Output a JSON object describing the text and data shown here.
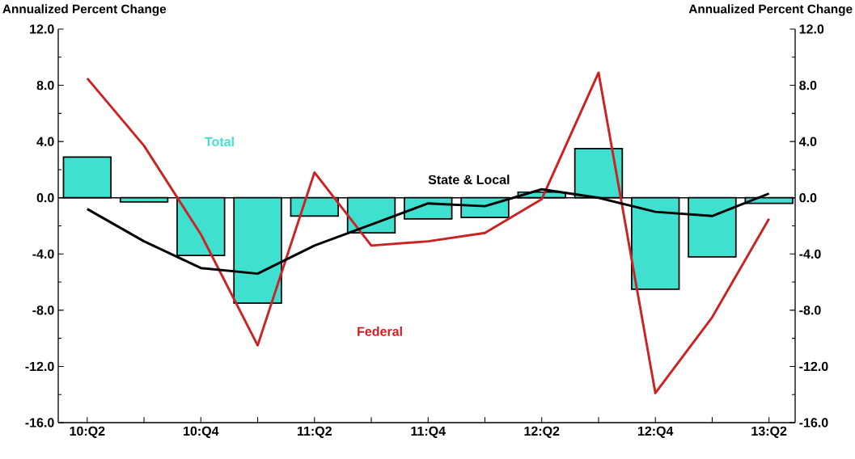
{
  "chart_data": {
    "type": "bar",
    "ylabel": "Annualized Percent Change",
    "y2label": "Annualized Percent Change",
    "categories": [
      "10:Q2",
      null,
      "10:Q4",
      null,
      "11:Q2",
      null,
      "11:Q4",
      null,
      "12:Q2",
      null,
      "12:Q4",
      null,
      "13:Q2"
    ],
    "series": [
      {
        "name": "Total",
        "color": "#40e0d0",
        "values": [
          2.9,
          -0.3,
          -4.1,
          -7.5,
          -1.3,
          -2.5,
          -1.5,
          -1.4,
          0.4,
          3.5,
          -6.5,
          -4.2,
          -0.4
        ]
      },
      {
        "name": "Federal",
        "type": "line",
        "color": "#cc2222",
        "values": [
          8.5,
          3.7,
          -2.6,
          -10.5,
          1.8,
          -3.4,
          -3.1,
          -2.5,
          -0.1,
          8.9,
          -13.9,
          -8.5,
          -1.5
        ]
      },
      {
        "name": "State & Local",
        "type": "line",
        "color": "#000000",
        "values": [
          -0.8,
          -3.1,
          -5.0,
          -5.4,
          -3.4,
          -1.9,
          -0.4,
          -0.6,
          0.6,
          0.0,
          -1.0,
          -1.3,
          0.3
        ]
      }
    ],
    "ylim": [
      -16,
      12
    ],
    "yticks": [
      {
        "value": -16,
        "label": "-16.0"
      },
      {
        "value": -12,
        "label": "-12.0"
      },
      {
        "value": -8,
        "label": "-8.0"
      },
      {
        "value": -4,
        "label": "-4.0"
      },
      {
        "value": 0,
        "label": "0.0"
      },
      {
        "value": 4,
        "label": "4.0"
      },
      {
        "value": 8,
        "label": "8.0"
      },
      {
        "value": 12,
        "label": "12.0"
      }
    ],
    "y2lim": [
      -16,
      12
    ],
    "y2ticks": [
      {
        "value": -16,
        "label": "-16.0"
      },
      {
        "value": -12,
        "label": "-12.0"
      },
      {
        "value": -8,
        "label": "-8.0"
      },
      {
        "value": -4,
        "label": "-4.0"
      },
      {
        "value": 0,
        "label": "0.0"
      },
      {
        "value": 4,
        "label": "4.0"
      },
      {
        "value": 8,
        "label": "8.0"
      },
      {
        "value": 12,
        "label": "12.0"
      }
    ],
    "ref_lines": [
      {
        "axis": "y",
        "value": 0,
        "color": "#000000"
      }
    ]
  }
}
